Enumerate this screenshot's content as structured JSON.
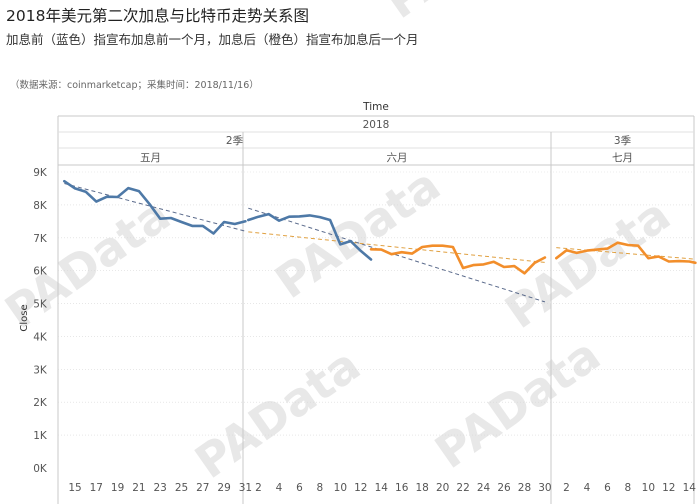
{
  "title": "2018年美元第二次加息与比特币走势关系图",
  "subtitle": "加息前（蓝色）指宣布加息前一个月，加息后（橙色）指宣布加息后一个月",
  "source": "（数据来源：coinmarketcap；采集时间：2018/11/16）",
  "watermark": "PAData",
  "colors": {
    "before": "#4e79a7",
    "after": "#f28e2b",
    "trend_before": "#5b6b8c",
    "trend_after": "#e0a040",
    "grid": "#d9d9d9"
  },
  "chart_data": {
    "type": "line",
    "xlabel": "Time",
    "ylabel": "Close",
    "year": "2018",
    "quarters": [
      {
        "label": "2季",
        "months": [
          "五月",
          "六月"
        ]
      },
      {
        "label": "3季",
        "months": [
          "七月"
        ]
      }
    ],
    "months": [
      {
        "label": "五月",
        "start_day": 14,
        "end_day": 31,
        "tick_days": [
          15,
          17,
          19,
          21,
          23,
          25,
          27,
          29,
          31
        ]
      },
      {
        "label": "六月",
        "start_day": 1,
        "end_day": 30,
        "tick_days": [
          2,
          4,
          6,
          8,
          10,
          12,
          14,
          16,
          18,
          20,
          22,
          24,
          26,
          28,
          30
        ]
      },
      {
        "label": "七月",
        "start_day": 1,
        "end_day": 14.6,
        "tick_days": [
          2,
          4,
          6,
          8,
          10,
          12,
          14
        ]
      }
    ],
    "y_ticks": [
      "0K",
      "1K",
      "2K",
      "3K",
      "4K",
      "5K",
      "6K",
      "7K",
      "8K",
      "9K"
    ],
    "ylim": [
      0,
      9000
    ],
    "series": [
      {
        "key": "before",
        "segments": [
          {
            "month": 0,
            "points": [
              [
                14,
                8720
              ],
              [
                15,
                8500
              ],
              [
                16,
                8400
              ],
              [
                17,
                8100
              ],
              [
                18,
                8250
              ],
              [
                19,
                8240
              ],
              [
                20,
                8510
              ],
              [
                21,
                8420
              ],
              [
                22,
                8020
              ],
              [
                23,
                7580
              ],
              [
                24,
                7600
              ],
              [
                25,
                7480
              ],
              [
                26,
                7360
              ],
              [
                27,
                7360
              ],
              [
                28,
                7130
              ],
              [
                29,
                7480
              ],
              [
                30,
                7420
              ],
              [
                31,
                7500
              ]
            ]
          },
          {
            "month": 1,
            "points": [
              [
                1,
                7540
              ],
              [
                2,
                7640
              ],
              [
                3,
                7720
              ],
              [
                4,
                7520
              ],
              [
                5,
                7640
              ],
              [
                6,
                7650
              ],
              [
                7,
                7680
              ],
              [
                8,
                7630
              ],
              [
                9,
                7540
              ],
              [
                10,
                6800
              ],
              [
                11,
                6900
              ],
              [
                12,
                6600
              ],
              [
                13,
                6340
              ]
            ]
          }
        ]
      },
      {
        "key": "after",
        "segments": [
          {
            "month": 1,
            "points": [
              [
                13,
                6650
              ],
              [
                14,
                6640
              ],
              [
                15,
                6500
              ],
              [
                16,
                6560
              ],
              [
                17,
                6520
              ],
              [
                18,
                6720
              ],
              [
                19,
                6760
              ],
              [
                20,
                6760
              ],
              [
                21,
                6720
              ],
              [
                22,
                6080
              ],
              [
                23,
                6170
              ],
              [
                24,
                6190
              ],
              [
                25,
                6270
              ],
              [
                26,
                6110
              ],
              [
                27,
                6140
              ],
              [
                28,
                5920
              ],
              [
                29,
                6240
              ],
              [
                30,
                6400
              ]
            ]
          },
          {
            "month": 2,
            "points": [
              [
                1,
                6380
              ],
              [
                2,
                6620
              ],
              [
                3,
                6540
              ],
              [
                4,
                6610
              ],
              [
                5,
                6640
              ],
              [
                6,
                6670
              ],
              [
                7,
                6850
              ],
              [
                8,
                6780
              ],
              [
                9,
                6760
              ],
              [
                10,
                6380
              ],
              [
                11,
                6430
              ],
              [
                12,
                6280
              ],
              [
                13,
                6290
              ],
              [
                14,
                6280
              ],
              [
                14.6,
                6240
              ]
            ]
          }
        ]
      }
    ],
    "trend_lines": [
      {
        "key": "before",
        "from": {
          "month": 0,
          "day": 14,
          "y": 8650
        },
        "to": {
          "month": 0,
          "day": 31,
          "y": 7200
        }
      },
      {
        "key": "before",
        "from": {
          "month": 1,
          "day": 1,
          "y": 7900
        },
        "to": {
          "month": 1,
          "day": 30,
          "y": 5050
        }
      },
      {
        "key": "after",
        "from": {
          "month": 1,
          "day": 1,
          "y": 7180
        },
        "to": {
          "month": 1,
          "day": 30,
          "y": 6250
        }
      },
      {
        "key": "after",
        "from": {
          "month": 2,
          "day": 1,
          "y": 6700
        },
        "to": {
          "month": 2,
          "day": 14.6,
          "y": 6350
        }
      }
    ]
  }
}
